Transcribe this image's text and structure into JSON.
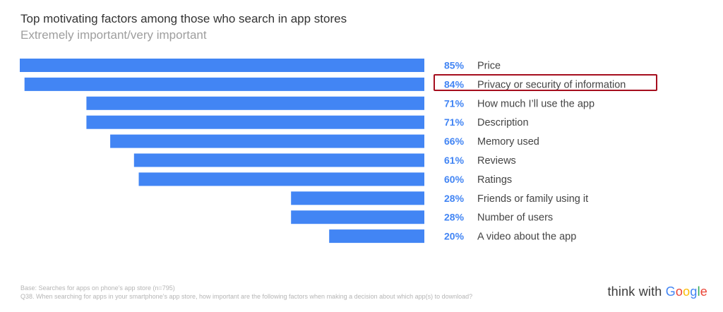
{
  "chart_data": {
    "type": "bar",
    "orientation": "horizontal",
    "title": "Top motivating factors among those who search in app stores",
    "subtitle": "Extremely important/very important",
    "categories": [
      "Price",
      "Privacy or security of information",
      "How much I’ll use the app",
      "Description",
      "Memory used",
      "Reviews",
      "Ratings",
      "Friends or family using it",
      "Number of users",
      "A video about the app"
    ],
    "values": [
      85,
      84,
      71,
      71,
      66,
      61,
      60,
      28,
      28,
      20
    ],
    "value_labels": [
      "85%",
      "84%",
      "71%",
      "71%",
      "66%",
      "61%",
      "60%",
      "28%",
      "28%",
      "20%"
    ],
    "xlim": [
      0,
      85
    ],
    "bar_color": "#4285f4",
    "label_color": "#4285f4",
    "highlighted_category": "Privacy or security of information",
    "highlight_color": "#a50e1e",
    "grid": false
  },
  "footnotes": {
    "base": "Base: Searches for apps on phone’s app store (n=795)",
    "question": "Q38. When searching for apps in your smartphone’s app store, how important are the following factors when making a decision about which app(s) to download?"
  },
  "logo": {
    "prefix": "think with ",
    "letters": [
      "G",
      "o",
      "o",
      "g",
      "l",
      "e"
    ]
  }
}
